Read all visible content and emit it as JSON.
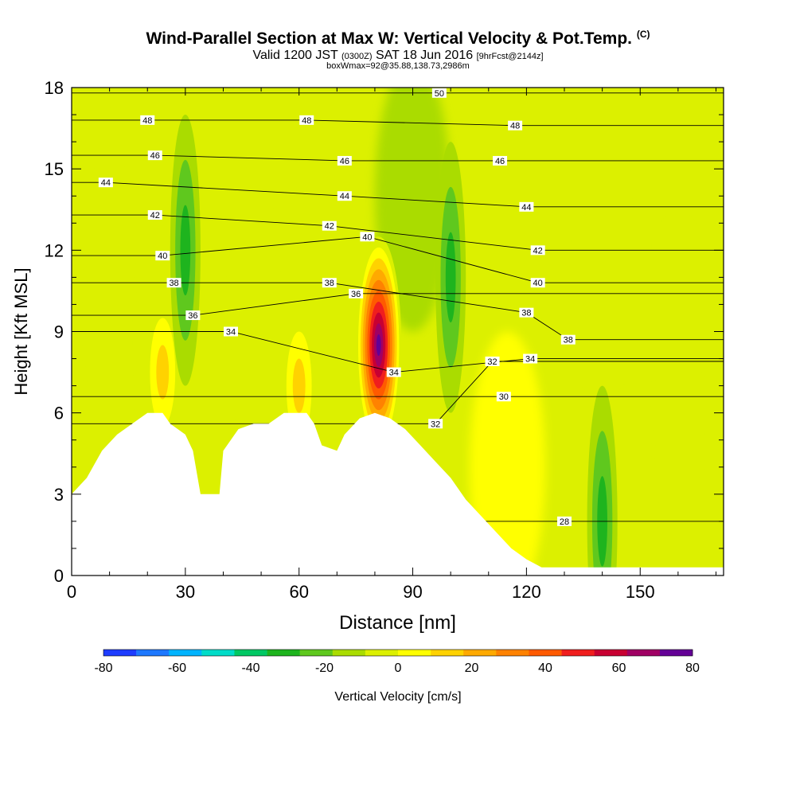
{
  "title": {
    "main": "Wind-Parallel Section at Max W: Vertical Velocity & Pot.Temp.",
    "copyright": "(C)",
    "valid_prefix": "Valid 1200 JST",
    "valid_utc": "(0300Z)",
    "valid_date": "SAT 18 Jun 2016",
    "forecast": "[9hrFcst@2144z]",
    "box": "boxWmax=92@35.88,138.73,2986m"
  },
  "chart_data": {
    "type": "heatmap",
    "xlabel": "Distance [nm]",
    "ylabel": "Height [Kft MSL]",
    "xlim": [
      0,
      172
    ],
    "ylim": [
      0,
      18
    ],
    "x_ticks": [
      0,
      30,
      60,
      90,
      120,
      150
    ],
    "y_ticks": [
      0,
      3,
      6,
      9,
      12,
      15,
      18
    ],
    "colorbar": {
      "label": "Vertical Velocity [cm/s]",
      "ticks": [
        -80,
        -60,
        -40,
        -20,
        0,
        20,
        40,
        60,
        80
      ],
      "colors": [
        "#1e3cff",
        "#1e78ff",
        "#00b4ff",
        "#00dcc8",
        "#00c864",
        "#1eb41e",
        "#5fc81e",
        "#aadc00",
        "#dcf000",
        "#ffff00",
        "#ffd200",
        "#ffaa00",
        "#ff8200",
        "#ff5a00",
        "#f01e1e",
        "#c80032",
        "#a00064",
        "#640096"
      ]
    },
    "terrain_kft": [
      [
        0,
        3.0
      ],
      [
        4,
        3.6
      ],
      [
        8,
        4.6
      ],
      [
        12,
        5.2
      ],
      [
        16,
        5.6
      ],
      [
        20,
        6.0
      ],
      [
        24,
        6.0
      ],
      [
        26,
        5.6
      ],
      [
        30,
        5.2
      ],
      [
        32,
        4.6
      ],
      [
        34,
        3.0
      ],
      [
        39,
        3.0
      ],
      [
        40,
        4.6
      ],
      [
        44,
        5.4
      ],
      [
        48,
        5.6
      ],
      [
        52,
        5.6
      ],
      [
        56,
        6.0
      ],
      [
        62,
        6.0
      ],
      [
        64,
        5.6
      ],
      [
        66,
        4.8
      ],
      [
        70,
        4.6
      ],
      [
        72,
        5.2
      ],
      [
        76,
        5.8
      ],
      [
        80,
        6.0
      ],
      [
        84,
        5.8
      ],
      [
        88,
        5.4
      ],
      [
        92,
        4.8
      ],
      [
        96,
        4.2
      ],
      [
        100,
        3.6
      ],
      [
        104,
        2.8
      ],
      [
        108,
        2.2
      ],
      [
        112,
        1.6
      ],
      [
        116,
        1.0
      ],
      [
        120,
        0.6
      ],
      [
        124,
        0.3
      ],
      [
        172,
        0.3
      ]
    ],
    "features": [
      {
        "type": "updraft_max",
        "x_nm": 81,
        "z_kft": 8.5,
        "w_cms": 92
      },
      {
        "type": "updraft",
        "x_nm": 24,
        "z_kft": 7.5,
        "w_cms": 25
      },
      {
        "type": "updraft",
        "x_nm": 60,
        "z_kft": 7.0,
        "w_cms": 20
      },
      {
        "type": "downdraft",
        "x_nm": 30,
        "z_kft": 12,
        "w_cms": -20
      },
      {
        "type": "downdraft",
        "x_nm": 100,
        "z_kft": 11,
        "w_cms": -25
      },
      {
        "type": "downdraft",
        "x_nm": 140,
        "z_kft": 2,
        "w_cms": -20
      }
    ],
    "theta_labels": [
      {
        "x_nm": 97,
        "z_kft": 17.8,
        "label": "50"
      },
      {
        "x_nm": 20,
        "z_kft": 16.8,
        "label": "48"
      },
      {
        "x_nm": 62,
        "z_kft": 16.8,
        "label": "48"
      },
      {
        "x_nm": 117,
        "z_kft": 16.6,
        "label": "48"
      },
      {
        "x_nm": 22,
        "z_kft": 15.5,
        "label": "46"
      },
      {
        "x_nm": 72,
        "z_kft": 15.3,
        "label": "46"
      },
      {
        "x_nm": 113,
        "z_kft": 15.3,
        "label": "46"
      },
      {
        "x_nm": 9,
        "z_kft": 14.5,
        "label": "44"
      },
      {
        "x_nm": 72,
        "z_kft": 14.0,
        "label": "44"
      },
      {
        "x_nm": 120,
        "z_kft": 13.6,
        "label": "44"
      },
      {
        "x_nm": 22,
        "z_kft": 13.3,
        "label": "42"
      },
      {
        "x_nm": 68,
        "z_kft": 12.9,
        "label": "42"
      },
      {
        "x_nm": 123,
        "z_kft": 12.0,
        "label": "42"
      },
      {
        "x_nm": 24,
        "z_kft": 11.8,
        "label": "40"
      },
      {
        "x_nm": 78,
        "z_kft": 12.5,
        "label": "40"
      },
      {
        "x_nm": 123,
        "z_kft": 10.8,
        "label": "40"
      },
      {
        "x_nm": 27,
        "z_kft": 10.8,
        "label": "38"
      },
      {
        "x_nm": 68,
        "z_kft": 10.8,
        "label": "38"
      },
      {
        "x_nm": 120,
        "z_kft": 9.7,
        "label": "38"
      },
      {
        "x_nm": 131,
        "z_kft": 8.7,
        "label": "38"
      },
      {
        "x_nm": 32,
        "z_kft": 9.6,
        "label": "36"
      },
      {
        "x_nm": 75,
        "z_kft": 10.4,
        "label": "36"
      },
      {
        "x_nm": 42,
        "z_kft": 9.0,
        "label": "34"
      },
      {
        "x_nm": 121,
        "z_kft": 8.0,
        "label": "34"
      },
      {
        "x_nm": 85,
        "z_kft": 7.5,
        "label": "34"
      },
      {
        "x_nm": 111,
        "z_kft": 7.9,
        "label": "32"
      },
      {
        "x_nm": 96,
        "z_kft": 5.6,
        "label": "32"
      },
      {
        "x_nm": 114,
        "z_kft": 6.6,
        "label": "30"
      },
      {
        "x_nm": 130,
        "z_kft": 2.0,
        "label": "28"
      }
    ]
  }
}
